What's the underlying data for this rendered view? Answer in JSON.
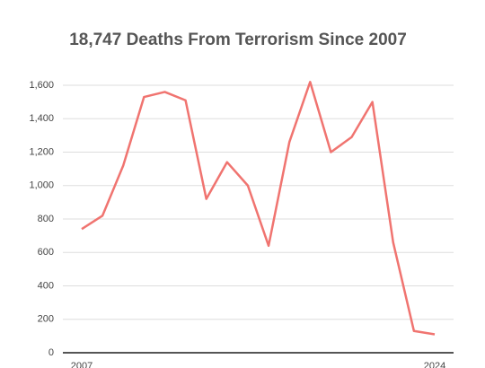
{
  "chart_data": {
    "type": "line",
    "title": "18,747 Deaths From Terrorism Since 2007",
    "x": [
      2007,
      2008,
      2009,
      2010,
      2011,
      2012,
      2013,
      2014,
      2015,
      2016,
      2017,
      2018,
      2019,
      2020,
      2021,
      2022,
      2023,
      2024
    ],
    "series": [
      {
        "name": "Deaths",
        "color": "#f07470",
        "values": [
          740,
          820,
          1120,
          1530,
          1560,
          1510,
          920,
          1140,
          1000,
          640,
          1260,
          1620,
          1200,
          1290,
          1500,
          660,
          130,
          110
        ]
      }
    ],
    "xlim": [
      2007,
      2024
    ],
    "xticks": [
      2007,
      2024
    ],
    "ylim": [
      0,
      1600
    ],
    "yticks": [
      0,
      200,
      400,
      600,
      800,
      {
        "value": 1000,
        "label": "1,000"
      },
      {
        "value": 1200,
        "label": "1,200"
      },
      {
        "value": 1400,
        "label": "1,400"
      },
      {
        "value": 1600,
        "label": "1,600"
      }
    ],
    "grid": true
  }
}
